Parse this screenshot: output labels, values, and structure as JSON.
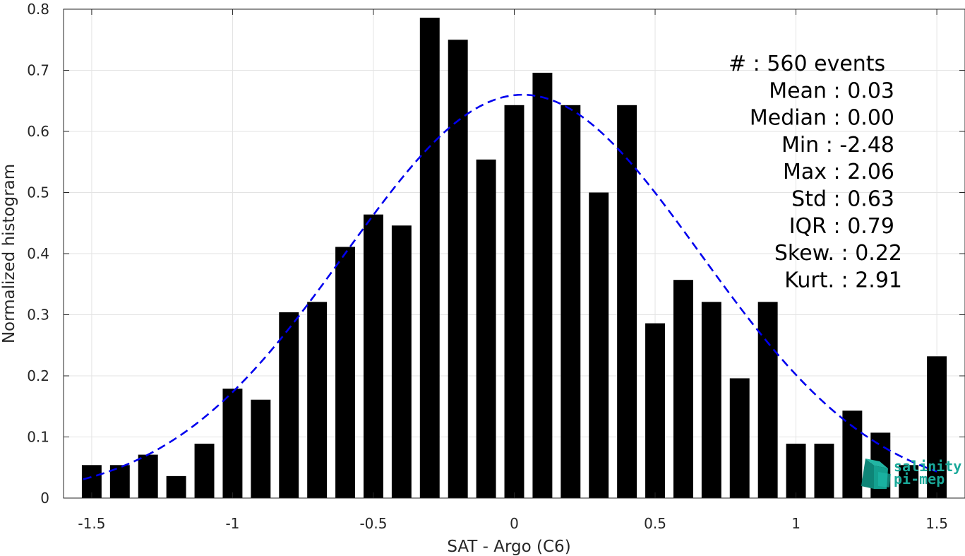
{
  "chart_data": {
    "type": "bar",
    "xlabel": "SAT - Argo (C6)",
    "ylabel": "Normalized histogram",
    "xlim": [
      -1.6,
      1.6
    ],
    "ylim": [
      0,
      0.8
    ],
    "xticks": [
      -1.5,
      -1,
      -0.5,
      0,
      0.5,
      1,
      1.5
    ],
    "xtick_labels": [
      "-1.5",
      "-1",
      "-0.5",
      "0",
      "0.5",
      "1",
      "1.5"
    ],
    "yticks": [
      0,
      0.1,
      0.2,
      0.3,
      0.4,
      0.5,
      0.6,
      0.7,
      0.8
    ],
    "ytick_labels": [
      "0",
      "0.1",
      "0.2",
      "0.3",
      "0.4",
      "0.5",
      "0.6",
      "0.7",
      "0.8"
    ],
    "grid": true,
    "bar_width": 0.07,
    "bars": {
      "x": [
        -1.5,
        -1.4,
        -1.3,
        -1.2,
        -1.1,
        -1.0,
        -0.9,
        -0.8,
        -0.7,
        -0.6,
        -0.5,
        -0.4,
        -0.3,
        -0.2,
        -0.1,
        0.0,
        0.1,
        0.2,
        0.3,
        0.4,
        0.5,
        0.6,
        0.7,
        0.8,
        0.9,
        1.0,
        1.1,
        1.2,
        1.3,
        1.4,
        1.5
      ],
      "values": [
        0.054,
        0.054,
        0.071,
        0.036,
        0.089,
        0.179,
        0.161,
        0.304,
        0.321,
        0.411,
        0.464,
        0.446,
        0.786,
        0.75,
        0.554,
        0.643,
        0.696,
        0.643,
        0.5,
        0.643,
        0.286,
        0.357,
        0.321,
        0.196,
        0.321,
        0.089,
        0.089,
        0.143,
        0.107,
        0.054,
        0.232
      ],
      "color": "#000000"
    },
    "fit_curve": {
      "style": "dashed",
      "color": "#0000ee",
      "distribution": "normal",
      "mean": 0.03,
      "std": 0.63,
      "x_range": [
        -1.53,
        1.5
      ]
    },
    "stats": [
      {
        "label": "#  : 560 events",
        "align": "left"
      },
      {
        "label": "Mean : 0.03",
        "align": "right"
      },
      {
        "label": "Median : 0.00",
        "align": "right"
      },
      {
        "label": "Min : -2.48",
        "align": "right"
      },
      {
        "label": "Max : 2.06",
        "align": "right"
      },
      {
        "label": "Std : 0.63",
        "align": "right"
      },
      {
        "label": "IQR : 0.79",
        "align": "right"
      },
      {
        "label": "Skew. : 0.22",
        "align": "right"
      },
      {
        "label": "Kurt. : 2.91",
        "align": "right"
      }
    ]
  },
  "logo": {
    "line1": "salinity",
    "line2": "pi-mep",
    "color": "#1aa99a"
  }
}
